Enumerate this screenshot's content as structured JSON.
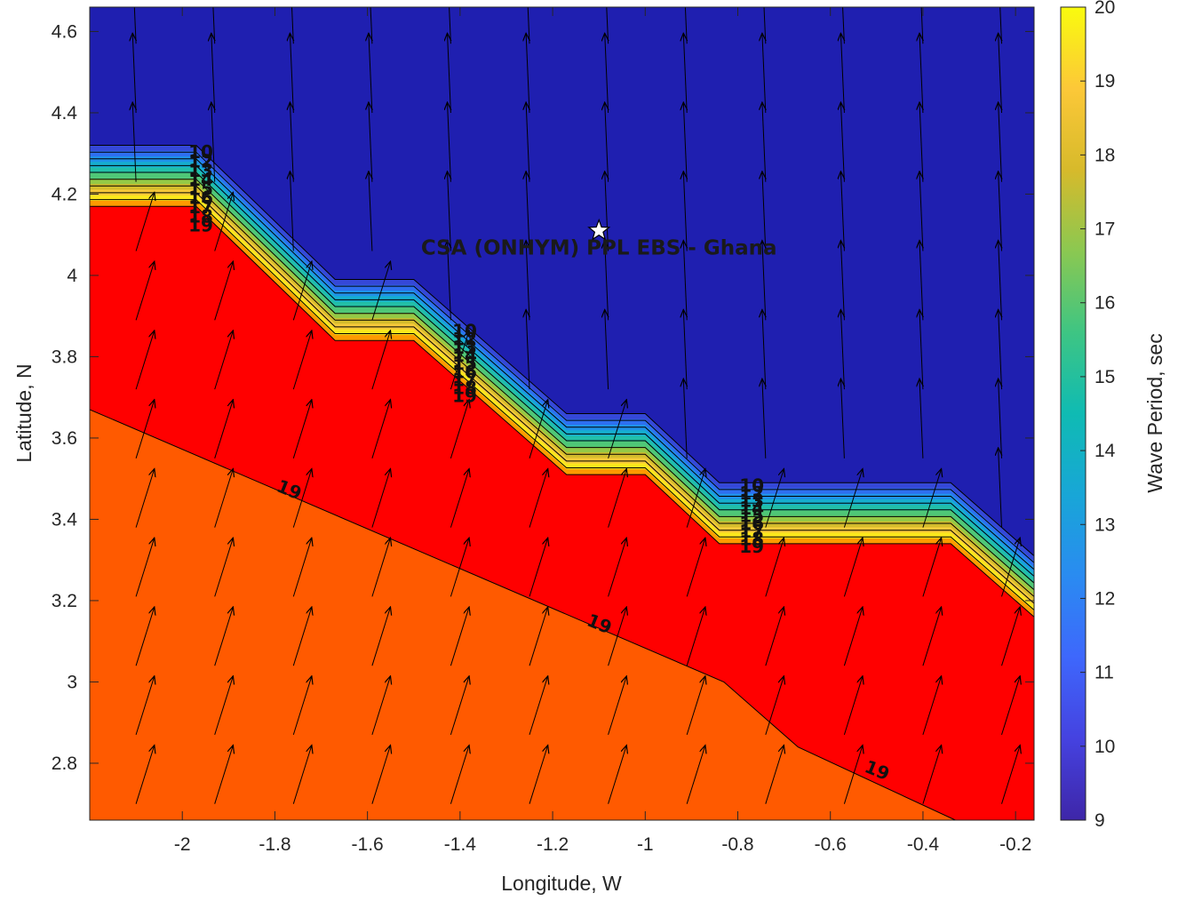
{
  "chart_data": {
    "type": "contour",
    "xlabel": "Longitude, W",
    "ylabel": "Latitude, N",
    "xlim": [
      -2.2,
      -0.16
    ],
    "ylim": [
      2.66,
      4.66
    ],
    "xticks": [
      -2,
      -1.8,
      -1.6,
      -1.4,
      -1.2,
      -1,
      -0.8,
      -0.6,
      -0.4,
      -0.2
    ],
    "yticks": [
      2.8,
      3,
      3.2,
      3.4,
      3.6,
      3.8,
      4,
      4.2,
      4.4,
      4.6
    ],
    "colorbar": {
      "label": "Wave Period, sec",
      "range": [
        9,
        20
      ],
      "ticks": [
        9,
        10,
        11,
        12,
        13,
        14,
        15,
        16,
        17,
        18,
        19,
        20
      ]
    },
    "colors": {
      "deep_blue": "#1f1fb0",
      "red": "#ff0000",
      "orange": "#ff5a00"
    },
    "regions": [
      {
        "period": 9,
        "description": "offshore low-period region",
        "color": "deep_blue"
      },
      {
        "period": 18.5,
        "description": "middle band",
        "color": "red"
      },
      {
        "period": 19.3,
        "description": "southern band",
        "color": "orange"
      }
    ],
    "boundary_shelf": [
      [
        -2.2,
        4.32
      ],
      [
        -1.97,
        4.32
      ],
      [
        -1.67,
        3.99
      ],
      [
        -1.5,
        3.99
      ],
      [
        -1.17,
        3.66
      ],
      [
        -1.0,
        3.66
      ],
      [
        -0.84,
        3.49
      ],
      [
        -0.34,
        3.49
      ],
      [
        -0.16,
        3.31
      ]
    ],
    "boundary_red_top": [
      [
        -2.2,
        4.17
      ],
      [
        -1.97,
        4.17
      ],
      [
        -1.67,
        3.84
      ],
      [
        -1.5,
        3.84
      ],
      [
        -1.17,
        3.51
      ],
      [
        -1.0,
        3.51
      ],
      [
        -0.84,
        3.34
      ],
      [
        -0.34,
        3.34
      ],
      [
        -0.16,
        3.16
      ]
    ],
    "contour_19": [
      [
        -2.2,
        3.67
      ],
      [
        -0.83,
        3.0
      ],
      [
        -0.67,
        2.84
      ],
      [
        -0.33,
        2.66
      ]
    ],
    "contour_labels": [
      {
        "text": "19",
        "x": -1.77,
        "y": 3.47
      },
      {
        "text": "19",
        "x": -1.1,
        "y": 3.14
      },
      {
        "text": "19",
        "x": -0.5,
        "y": 2.78
      }
    ],
    "stacked_label_columns": [
      {
        "x": -1.96,
        "y_top": 4.3,
        "y_bottom": 4.12,
        "labels": [
          "10",
          "12",
          "13",
          "14",
          "15",
          "16",
          "17",
          "18",
          "19"
        ]
      },
      {
        "x": -1.39,
        "y_top": 3.86,
        "y_bottom": 3.7,
        "labels": [
          "10",
          "12",
          "13",
          "14",
          "15",
          "16",
          "17",
          "18",
          "19"
        ]
      },
      {
        "x": -0.77,
        "y_top": 3.48,
        "y_bottom": 3.33,
        "labels": [
          "10",
          "12",
          "13",
          "14",
          "15",
          "16",
          "17",
          "18",
          "19"
        ]
      }
    ],
    "vector_field": {
      "direction_deg_north_region": 95,
      "direction_deg_south_region": 58,
      "spacing_lon": 0.17,
      "spacing_lat": 0.17
    },
    "station": {
      "label": "CSA (ONHYM) PPL EBS  - Ghana",
      "lon": -1.1,
      "lat": 4.11,
      "marker": "star"
    }
  }
}
